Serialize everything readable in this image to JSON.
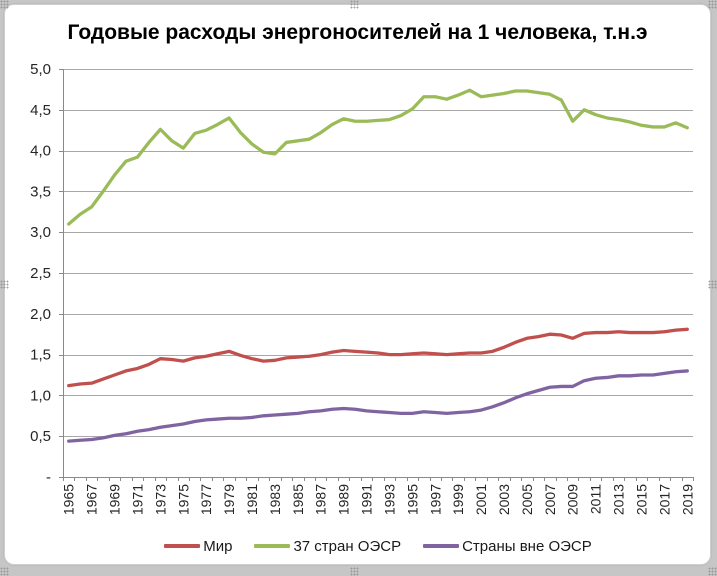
{
  "chart_data": {
    "type": "line",
    "title": "Годовые расходы энергоносителей на 1 человека, т.н.э",
    "x": [
      1965,
      1966,
      1967,
      1968,
      1969,
      1970,
      1971,
      1972,
      1973,
      1974,
      1975,
      1976,
      1977,
      1978,
      1979,
      1980,
      1981,
      1982,
      1983,
      1984,
      1985,
      1986,
      1987,
      1988,
      1989,
      1990,
      1991,
      1992,
      1993,
      1994,
      1995,
      1996,
      1997,
      1998,
      1999,
      2000,
      2001,
      2002,
      2003,
      2004,
      2005,
      2006,
      2007,
      2008,
      2009,
      2010,
      2011,
      2012,
      2013,
      2014,
      2015,
      2016,
      2017,
      2018,
      2019
    ],
    "x_ticklabels": [
      "1965",
      "1967",
      "1969",
      "1971",
      "1973",
      "1975",
      "1977",
      "1979",
      "1981",
      "1983",
      "1985",
      "1987",
      "1989",
      "1991",
      "1993",
      "1995",
      "1997",
      "1999",
      "2001",
      "2003",
      "2005",
      "2007",
      "2009",
      "2011",
      "2013",
      "2015",
      "2017",
      "2019"
    ],
    "y_ticklabels": [
      "5,0",
      "4,5",
      "4,0",
      "3,5",
      "3,0",
      "2,5",
      "2,0",
      "1,5",
      "1,0",
      "0,5",
      "-"
    ],
    "ylim": [
      0,
      5
    ],
    "y_step": 0.5,
    "grid": "horizontal",
    "legend_position": "bottom",
    "series": [
      {
        "name": "Мир",
        "color": "#C0504D",
        "values": [
          1.12,
          1.14,
          1.15,
          1.2,
          1.25,
          1.3,
          1.33,
          1.38,
          1.45,
          1.44,
          1.42,
          1.46,
          1.48,
          1.51,
          1.54,
          1.49,
          1.45,
          1.42,
          1.43,
          1.46,
          1.47,
          1.48,
          1.5,
          1.53,
          1.55,
          1.54,
          1.53,
          1.52,
          1.5,
          1.5,
          1.51,
          1.52,
          1.51,
          1.5,
          1.51,
          1.52,
          1.52,
          1.54,
          1.59,
          1.65,
          1.7,
          1.72,
          1.75,
          1.74,
          1.7,
          1.76,
          1.77,
          1.77,
          1.78,
          1.77,
          1.77,
          1.77,
          1.78,
          1.8,
          1.81
        ]
      },
      {
        "name": "37 стран ОЭСР",
        "color": "#9BBB59",
        "values": [
          3.1,
          3.22,
          3.31,
          3.5,
          3.7,
          3.87,
          3.92,
          4.1,
          4.26,
          4.12,
          4.03,
          4.21,
          4.25,
          4.32,
          4.4,
          4.22,
          4.08,
          3.98,
          3.96,
          4.1,
          4.12,
          4.14,
          4.22,
          4.32,
          4.39,
          4.36,
          4.36,
          4.37,
          4.38,
          4.43,
          4.51,
          4.66,
          4.66,
          4.63,
          4.68,
          4.74,
          4.66,
          4.68,
          4.7,
          4.73,
          4.73,
          4.71,
          4.69,
          4.62,
          4.36,
          4.5,
          4.44,
          4.4,
          4.38,
          4.35,
          4.31,
          4.29,
          4.29,
          4.34,
          4.28
        ]
      },
      {
        "name": "Страны вне ОЭСР",
        "color": "#8064A2",
        "values": [
          0.44,
          0.45,
          0.46,
          0.48,
          0.51,
          0.53,
          0.56,
          0.58,
          0.61,
          0.63,
          0.65,
          0.68,
          0.7,
          0.71,
          0.72,
          0.72,
          0.73,
          0.75,
          0.76,
          0.77,
          0.78,
          0.8,
          0.81,
          0.83,
          0.84,
          0.83,
          0.81,
          0.8,
          0.79,
          0.78,
          0.78,
          0.8,
          0.79,
          0.78,
          0.79,
          0.8,
          0.82,
          0.86,
          0.91,
          0.97,
          1.02,
          1.06,
          1.1,
          1.11,
          1.11,
          1.18,
          1.21,
          1.22,
          1.24,
          1.24,
          1.25,
          1.25,
          1.27,
          1.29,
          1.3
        ]
      }
    ],
    "colors": {
      "axis": "#8a8a8a",
      "gridline": "#a8a8a8",
      "tick_label": "#262626",
      "background": "#ffffff",
      "surround": "#c6c6c7"
    }
  }
}
